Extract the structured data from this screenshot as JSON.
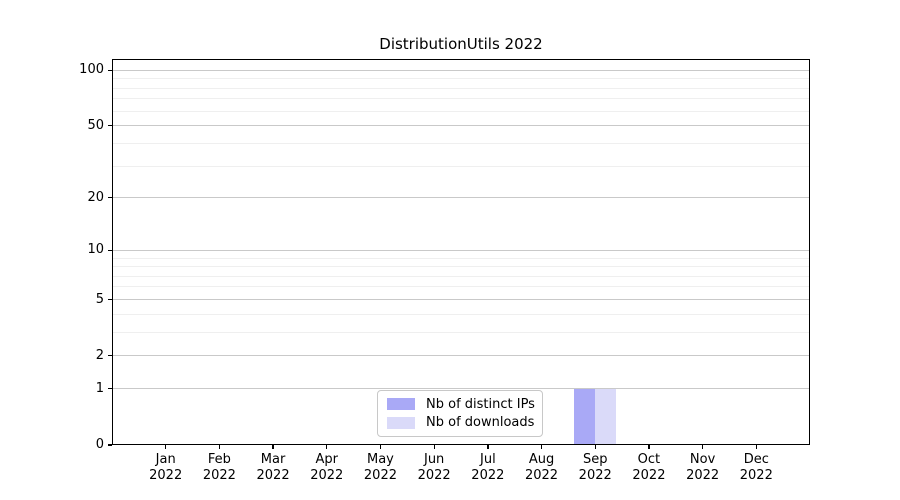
{
  "chart_data": {
    "type": "bar",
    "title": "DistributionUtils 2022",
    "categories": [
      {
        "month": "Jan",
        "year": "2022"
      },
      {
        "month": "Feb",
        "year": "2022"
      },
      {
        "month": "Mar",
        "year": "2022"
      },
      {
        "month": "Apr",
        "year": "2022"
      },
      {
        "month": "May",
        "year": "2022"
      },
      {
        "month": "Jun",
        "year": "2022"
      },
      {
        "month": "Jul",
        "year": "2022"
      },
      {
        "month": "Aug",
        "year": "2022"
      },
      {
        "month": "Sep",
        "year": "2022"
      },
      {
        "month": "Oct",
        "year": "2022"
      },
      {
        "month": "Nov",
        "year": "2022"
      },
      {
        "month": "Dec",
        "year": "2022"
      }
    ],
    "series": [
      {
        "name": "Nb of distinct IPs",
        "color": "#a9a9f6",
        "values": [
          0,
          0,
          0,
          0,
          0,
          0,
          0,
          0,
          1,
          0,
          0,
          0
        ]
      },
      {
        "name": "Nb of downloads",
        "color": "#dadaf9",
        "values": [
          0,
          0,
          0,
          0,
          0,
          0,
          0,
          0,
          1,
          0,
          0,
          0
        ]
      }
    ],
    "yscale": "log1p",
    "ylim": [
      0,
      115
    ],
    "yticks": [
      0,
      1,
      2,
      5,
      10,
      20,
      50,
      100
    ],
    "yticks_minor": [
      3,
      4,
      6,
      7,
      8,
      9,
      30,
      40,
      60,
      70,
      80,
      90
    ],
    "xlabel": "",
    "ylabel": "",
    "grid": "horizontal",
    "legend_position": "lower center",
    "colors": {
      "grid_major": "#c9c9c9",
      "grid_minor": "#efefef",
      "spine": "#000000",
      "text": "#000000",
      "legend_border": "#c8c8c8",
      "background": "#ffffff"
    }
  }
}
